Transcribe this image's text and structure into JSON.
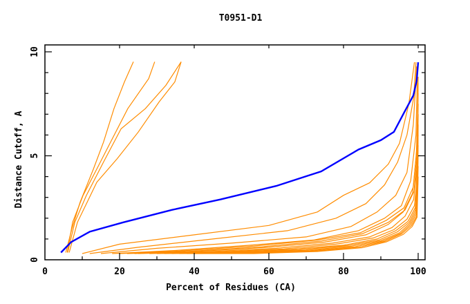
{
  "chart_data": {
    "type": "line",
    "title": "T0951-D1",
    "xlabel": "Percent of Residues (CA)",
    "ylabel": "Distance Cutoff, A",
    "xlim": [
      0,
      100
    ],
    "ylim": [
      0,
      10
    ],
    "x_ticks": [
      0,
      20,
      40,
      60,
      80,
      100
    ],
    "x_tick_labels": [
      "0",
      "20",
      "40",
      "60",
      "80",
      "100"
    ],
    "x_minor_ticks": [
      10,
      30,
      50,
      70,
      90
    ],
    "y_ticks": [
      0,
      5,
      10
    ],
    "y_tick_labels": [
      "0",
      "5",
      "10"
    ],
    "y_minor_ticks": [
      1,
      2,
      3,
      4,
      6,
      7,
      8,
      9
    ],
    "grid": false,
    "colors": {
      "highlight": "#0000ff",
      "others": "#ff8c00",
      "axis": "#000000"
    },
    "highlight_series": {
      "name": "highlight",
      "x": [
        4.3,
        7.0,
        12.0,
        21.0,
        34.0,
        47.0,
        62.0,
        74.0,
        84.0,
        90.0,
        93.5,
        96.3,
        98.7,
        99.6,
        100.0
      ],
      "y": [
        0.35,
        0.85,
        1.35,
        1.8,
        2.4,
        2.9,
        3.55,
        4.25,
        5.3,
        5.75,
        6.15,
        7.1,
        7.9,
        8.6,
        9.5
      ]
    },
    "series": [
      {
        "x": [
          5.6,
          7.2,
          9.4,
          13.0,
          15.7,
          18.5,
          21.3,
          23.7
        ],
        "y": [
          0.35,
          1.48,
          2.76,
          4.37,
          5.66,
          7.27,
          8.55,
          9.52
        ]
      },
      {
        "x": [
          6.0,
          7.4,
          10.2,
          13.9,
          17.6,
          22.2,
          27.8,
          29.4
        ],
        "y": [
          0.35,
          1.8,
          3.09,
          4.37,
          5.66,
          7.27,
          8.71,
          9.52
        ]
      },
      {
        "x": [
          6.1,
          8.0,
          11.1,
          15.7,
          20.4,
          26.9,
          32.4,
          36.5
        ],
        "y": [
          0.35,
          1.8,
          3.09,
          4.7,
          6.3,
          7.27,
          8.39,
          9.52
        ]
      },
      {
        "x": [
          6.5,
          8.7,
          13.9,
          19.4,
          25.0,
          30.6,
          34.8,
          36.5
        ],
        "y": [
          0.35,
          1.8,
          3.73,
          4.87,
          6.14,
          7.59,
          8.55,
          9.52
        ]
      },
      {
        "x": [
          10.0,
          20.0,
          40.0,
          60.0,
          73.0,
          80.0,
          87.0,
          92.0,
          95.0,
          97.5,
          99.0
        ],
        "y": [
          0.3,
          0.75,
          1.2,
          1.65,
          2.3,
          3.1,
          3.7,
          4.6,
          5.6,
          7.5,
          9.5
        ]
      },
      {
        "x": [
          12.0,
          25.0,
          45.0,
          65.0,
          78.0,
          86.0,
          91.0,
          94.5,
          97.0,
          98.8,
          99.4
        ],
        "y": [
          0.3,
          0.6,
          1.0,
          1.4,
          2.0,
          2.7,
          3.6,
          4.7,
          6.0,
          7.8,
          9.5
        ]
      },
      {
        "x": [
          15.0,
          30.0,
          50.0,
          70.0,
          82.0,
          89.0,
          94.0,
          97.0,
          98.7,
          99.6
        ],
        "y": [
          0.3,
          0.55,
          0.8,
          1.1,
          1.6,
          2.3,
          3.1,
          4.2,
          6.5,
          9.3
        ]
      },
      {
        "x": [
          18.0,
          35.0,
          55.0,
          72.0,
          84.0,
          91.0,
          95.5,
          98.0,
          99.4,
          99.8
        ],
        "y": [
          0.3,
          0.45,
          0.7,
          0.95,
          1.4,
          2.0,
          2.6,
          3.8,
          6.0,
          9.0
        ]
      },
      {
        "x": [
          22.0,
          40.0,
          60.0,
          75.0,
          86.0,
          92.0,
          96.0,
          98.5,
          99.5,
          100.0
        ],
        "y": [
          0.3,
          0.4,
          0.6,
          0.85,
          1.2,
          1.7,
          2.3,
          3.2,
          5.0,
          8.0
        ]
      },
      {
        "x": [
          25.0,
          42.0,
          62.0,
          77.0,
          87.0,
          93.0,
          96.5,
          98.8,
          99.7,
          100.0
        ],
        "y": [
          0.3,
          0.38,
          0.55,
          0.8,
          1.1,
          1.55,
          2.1,
          2.9,
          4.5,
          7.5
        ]
      },
      {
        "x": [
          28.0,
          44.0,
          64.0,
          78.0,
          88.0,
          93.5,
          97.0,
          99.0,
          99.8,
          100.0
        ],
        "y": [
          0.3,
          0.36,
          0.52,
          0.75,
          1.05,
          1.45,
          1.95,
          2.6,
          4.0,
          7.0
        ]
      },
      {
        "x": [
          30.0,
          46.0,
          66.0,
          80.0,
          89.0,
          94.0,
          97.3,
          99.2,
          99.9,
          100.0
        ],
        "y": [
          0.3,
          0.35,
          0.5,
          0.7,
          1.0,
          1.4,
          1.85,
          2.5,
          3.6,
          6.5
        ]
      },
      {
        "x": [
          32.0,
          48.0,
          68.0,
          81.0,
          89.5,
          94.5,
          97.6,
          99.3,
          100.0
        ],
        "y": [
          0.3,
          0.34,
          0.48,
          0.68,
          0.95,
          1.35,
          1.8,
          2.4,
          6.0
        ]
      },
      {
        "x": [
          34.0,
          50.0,
          70.0,
          82.0,
          90.0,
          95.0,
          97.8,
          99.4,
          100.0
        ],
        "y": [
          0.3,
          0.33,
          0.46,
          0.65,
          0.92,
          1.3,
          1.75,
          2.3,
          5.5
        ]
      },
      {
        "x": [
          36.0,
          52.0,
          71.0,
          83.0,
          90.5,
          95.3,
          98.0,
          99.5,
          100.0
        ],
        "y": [
          0.3,
          0.32,
          0.44,
          0.62,
          0.9,
          1.27,
          1.7,
          2.2,
          5.0
        ]
      },
      {
        "x": [
          38.0,
          54.0,
          72.0,
          84.0,
          91.0,
          95.6,
          98.2,
          99.6,
          100.0
        ],
        "y": [
          0.3,
          0.31,
          0.42,
          0.6,
          0.88,
          1.25,
          1.65,
          2.1,
          4.5
        ]
      },
      {
        "x": [
          40.0,
          56.0,
          73.0,
          85.0,
          91.5,
          96.0,
          98.4,
          99.7,
          100.0
        ],
        "y": [
          0.3,
          0.3,
          0.4,
          0.58,
          0.86,
          1.22,
          1.6,
          2.05,
          4.0
        ]
      },
      {
        "x": [
          24.0,
          38.0,
          58.0,
          74.0,
          85.0,
          92.0,
          96.5,
          98.9,
          99.8,
          100.0
        ],
        "y": [
          0.3,
          0.4,
          0.62,
          0.9,
          1.25,
          1.8,
          2.4,
          3.3,
          5.2,
          8.5
        ]
      },
      {
        "x": [
          20.0,
          36.0,
          56.0,
          73.0,
          84.5,
          91.5,
          96.2,
          98.7,
          99.7,
          100.0
        ],
        "y": [
          0.3,
          0.42,
          0.66,
          0.95,
          1.3,
          1.9,
          2.5,
          3.5,
          5.5,
          8.8
        ]
      }
    ]
  }
}
